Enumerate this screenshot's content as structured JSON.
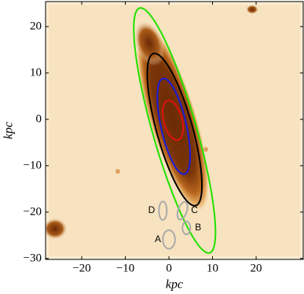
{
  "chart_data": {
    "type": "image",
    "x_label": "kpc",
    "y_label": "kpc",
    "xlim": [
      -28.3,
      30.8
    ],
    "ylim": [
      -30.2,
      25.4
    ],
    "xticks": [
      {
        "value": -20,
        "label": "−20"
      },
      {
        "value": -10,
        "label": "−10"
      },
      0,
      10,
      20
    ],
    "yticks": [
      {
        "value": -30,
        "label": "−30"
      },
      {
        "value": -20,
        "label": "−20"
      },
      {
        "value": -10,
        "label": "−10"
      },
      0,
      10,
      20
    ],
    "ellipses": [
      {
        "color": "#22e000",
        "cx": 1.3,
        "cy": -2.4,
        "a": 27.6,
        "b": 5.0,
        "angle": 17
      },
      {
        "color": "#000000",
        "cx": 1.3,
        "cy": -2.2,
        "a": 17.1,
        "b": 4.1,
        "angle": 16.6
      },
      {
        "color": "#1a1adc",
        "cx": 1.1,
        "cy": -1.5,
        "a": 10.6,
        "b": 2.9,
        "angle": 13.6
      },
      {
        "color": "#e01010",
        "cx": 0.9,
        "cy": -0.2,
        "a": 4.4,
        "b": 2.1,
        "angle": 16
      }
    ],
    "regions_color": "#aaaaaa",
    "regions": [
      {
        "label": "D",
        "cx": -1.4,
        "cy": -19.7,
        "a": 2.0,
        "b": 0.9,
        "angle": 0
      },
      {
        "label": "C",
        "cx": 3.1,
        "cy": -19.7,
        "a": 2.0,
        "b": 1.0,
        "angle": -20
      },
      {
        "label": "B",
        "cx": 4.0,
        "cy": -23.4,
        "a": 1.4,
        "b": 0.9,
        "angle": 0
      },
      {
        "label": "A",
        "cx": 0.0,
        "cy": -25.9,
        "a": 2.0,
        "b": 1.4,
        "angle": 0
      }
    ]
  }
}
